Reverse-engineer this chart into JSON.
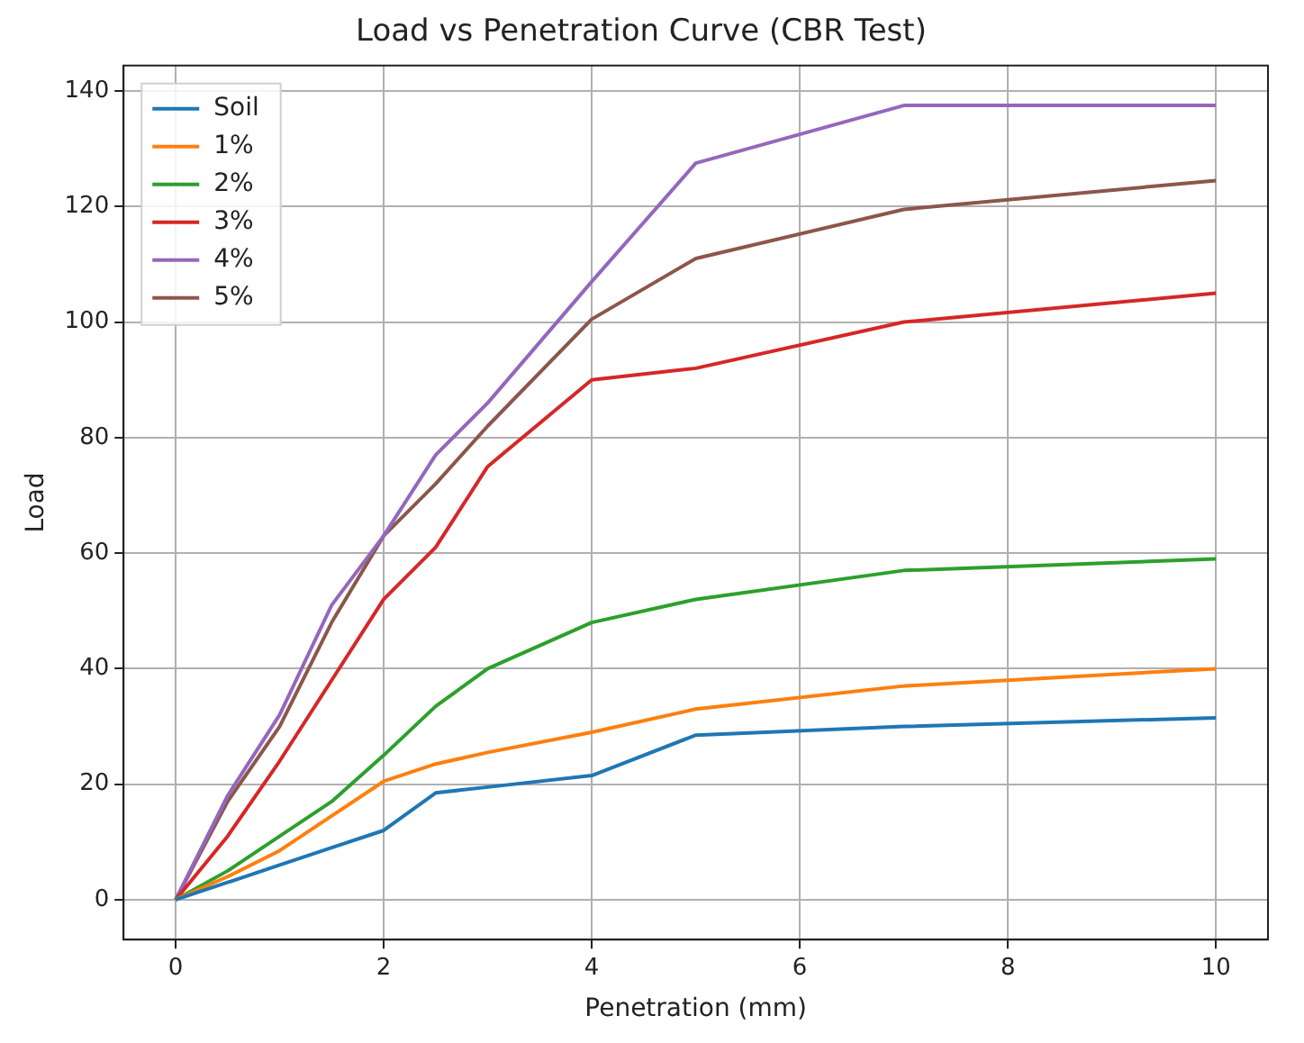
{
  "chart_data": {
    "type": "line",
    "title": "Load vs Penetration Curve (CBR Test)",
    "xlabel": "Penetration (mm)",
    "ylabel": "Load",
    "x": [
      0,
      0.5,
      1,
      1.5,
      2,
      2.5,
      3,
      4,
      5,
      7,
      10
    ],
    "series": [
      {
        "name": "Soil",
        "color": "#1f77b4",
        "values": [
          0,
          3,
          6,
          9,
          12,
          18.5,
          19.5,
          21.5,
          28.5,
          30,
          31.5
        ]
      },
      {
        "name": "1%",
        "color": "#ff7f0e",
        "values": [
          0,
          4,
          8.5,
          14.5,
          20.5,
          23.5,
          25.5,
          29,
          33,
          37,
          40
        ]
      },
      {
        "name": "2%",
        "color": "#2ca02c",
        "values": [
          0,
          5,
          11,
          17,
          25,
          33.5,
          40,
          48,
          52,
          57,
          59
        ]
      },
      {
        "name": "3%",
        "color": "#d62728",
        "values": [
          0,
          11,
          24,
          38,
          52,
          61,
          75,
          90,
          92,
          100,
          105
        ]
      },
      {
        "name": "4%",
        "color": "#9467bd",
        "values": [
          0,
          18,
          32,
          51,
          63,
          77,
          86,
          107,
          127.5,
          137.5,
          137.5
        ]
      },
      {
        "name": "5%",
        "color": "#8c564b",
        "values": [
          0,
          17,
          30,
          48,
          63,
          72,
          82,
          100.5,
          111,
          119.5,
          124.5
        ]
      }
    ],
    "xlim": [
      -0.5,
      10.5
    ],
    "xticks": [
      0,
      2,
      4,
      6,
      8,
      10
    ],
    "ylim": [
      -6.9,
      144.4
    ],
    "yticks": [
      0,
      20,
      40,
      60,
      80,
      100,
      120,
      140
    ],
    "grid": true,
    "legend": "top left",
    "marker": "none",
    "line_style": "solid"
  }
}
